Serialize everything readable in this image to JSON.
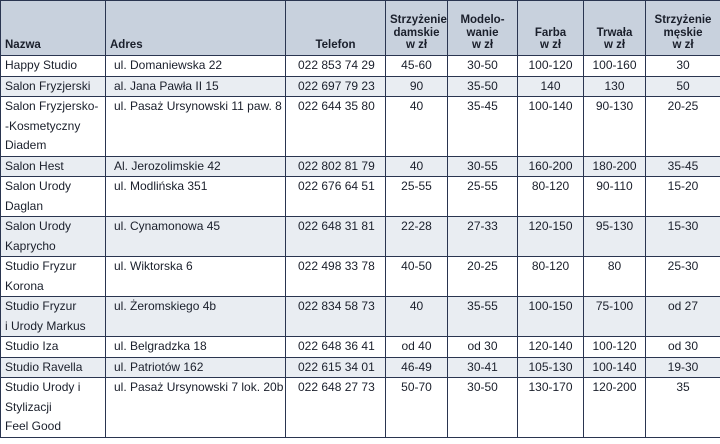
{
  "table": {
    "header": [
      [
        "Nazwa"
      ],
      [
        "Adres"
      ],
      [
        "Telefon"
      ],
      [
        "Strzyżenie",
        "damskie",
        "w zł"
      ],
      [
        "Modelo-",
        "wanie",
        "w zł"
      ],
      [
        "Farba",
        "w zł"
      ],
      [
        "Trwała",
        "w zł"
      ],
      [
        "Strzyżenie",
        "męskie",
        "w zł"
      ]
    ],
    "rows": [
      [
        [
          "Happy Studio"
        ],
        "ul. Domaniewska 22",
        "022 853 74 29",
        "45-60",
        "30-50",
        "100-120",
        "100-160",
        "30"
      ],
      [
        [
          "Salon Fryzjerski"
        ],
        "al. Jana Pawła II 15",
        "022 697 79 23",
        "90",
        "35-50",
        "140",
        "130",
        "50"
      ],
      [
        [
          "Salon Fryzjersko-",
          "-Kosmetyczny",
          "Diadem"
        ],
        "ul. Pasaż Ursynowski 11 paw. 8",
        "022 644 35 80",
        "40",
        "35-45",
        "100-140",
        "90-130",
        "20-25"
      ],
      [
        [
          "Salon Hest"
        ],
        "Al. Jerozolimskie 42",
        "022 802 81 79",
        "40",
        "30-55",
        "160-200",
        "180-200",
        "35-45"
      ],
      [
        [
          "Salon Urody",
          "Daglan"
        ],
        "ul. Modlińska 351",
        "022 676 64 51",
        "25-55",
        "25-55",
        "80-120",
        "90-110",
        "15-20"
      ],
      [
        [
          "Salon Urody",
          "Kaprycho"
        ],
        "ul. Cynamonowa 45",
        "022 648 31 81",
        "22-28",
        "27-33",
        "120-150",
        "95-130",
        "15-30"
      ],
      [
        [
          "Studio Fryzur",
          "Korona"
        ],
        "ul. Wiktorska 6",
        "022 498 33 78",
        "40-50",
        "20-25",
        "80-120",
        "80",
        "25-30"
      ],
      [
        [
          "Studio Fryzur",
          "i Urody Markus"
        ],
        "ul. Żeromskiego 4b",
        "022 834 58 73",
        "40",
        "35-55",
        "100-150",
        "75-100",
        "od 27"
      ],
      [
        [
          "Studio Iza"
        ],
        "ul. Belgradzka 18",
        "022 648 36 41",
        "od 40",
        "od 30",
        "120-140",
        "100-120",
        "od 30"
      ],
      [
        [
          "Studio Ravella"
        ],
        "ul. Patriotów 162",
        "022 615 34 01",
        "46-49",
        "30-41",
        "105-130",
        "100-140",
        "19-30"
      ],
      [
        [
          "Studio Urody i",
          "Stylizacji",
          "Feel Good"
        ],
        "ul. Pasaż Ursynowski 7 lok. 20b",
        "022 648 27 73",
        "50-70",
        "30-50",
        "130-170",
        "120-200",
        "35"
      ]
    ]
  }
}
